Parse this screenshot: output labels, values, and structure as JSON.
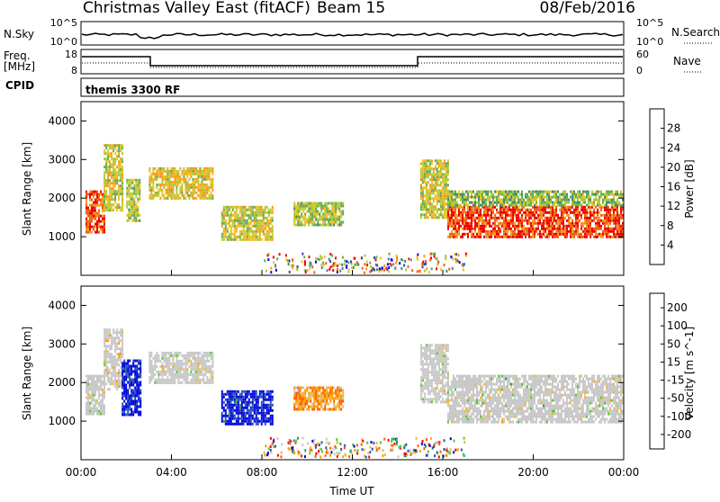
{
  "header": {
    "title": "Christmas Valley East (fitACF)",
    "beam": "Beam 15",
    "date": "08/Feb/2016"
  },
  "strips": {
    "nsky_label": "N.Sky",
    "nsearch_label": "N.Search",
    "nsky_yticks": [
      "10^5",
      "10^0"
    ],
    "nsearch_yticks": [
      "10^5",
      "10^0"
    ],
    "freq_label_1": "Freq.",
    "freq_label_2": "[MHz]",
    "freq_yticks": [
      "18",
      "8"
    ],
    "nave_label": "Nave",
    "nave_yticks": [
      "60",
      "0"
    ],
    "cpid_label": "CPID",
    "cpid_value": "themis 3300 RF"
  },
  "x_axis": {
    "label": "Time UT",
    "ticks": [
      "00:00",
      "04:00",
      "08:00",
      "12:00",
      "16:00",
      "20:00",
      "00:00"
    ]
  },
  "colors": {
    "power": [
      "#0000ee",
      "#2a4fa8",
      "#3f8a78",
      "#66aa55",
      "#aacc33",
      "#f0c020",
      "#f59a1e",
      "#f06018",
      "#ee0000"
    ],
    "velocity": [
      "#ff0000",
      "#ff5a00",
      "#ff9a00",
      "#f2b730",
      "#c8c8c8",
      "#55cc33",
      "#2f9a60",
      "#2855b8",
      "#0000dd"
    ]
  },
  "chart_data": [
    {
      "type": "heatmap",
      "panel": "power",
      "ylabel": "Slant Range [km]",
      "xlabel": "",
      "xlim": [
        0,
        24
      ],
      "ylim": [
        0,
        4500
      ],
      "yticks": [
        1000,
        2000,
        3000,
        4000
      ],
      "colorbar_label": "Power [dB]",
      "colorbar_ticks": [
        "4",
        "8",
        "12",
        "16",
        "20",
        "24",
        "28"
      ],
      "colorbar_range": [
        0,
        30
      ],
      "regions": [
        {
          "t0": 0.2,
          "t1": 1.0,
          "r0": 1100,
          "r1": 2200,
          "level": 0.85
        },
        {
          "t0": 1.0,
          "t1": 1.8,
          "r0": 1700,
          "r1": 3400,
          "level": 0.55
        },
        {
          "t0": 2.0,
          "t1": 2.6,
          "r0": 1400,
          "r1": 2500,
          "level": 0.5
        },
        {
          "t0": 3.0,
          "t1": 5.8,
          "r0": 2000,
          "r1": 2800,
          "level": 0.6
        },
        {
          "t0": 6.2,
          "t1": 8.5,
          "r0": 900,
          "r1": 1800,
          "level": 0.55
        },
        {
          "t0": 9.4,
          "t1": 11.6,
          "r0": 1300,
          "r1": 1900,
          "level": 0.5
        },
        {
          "t0": 15.0,
          "t1": 16.2,
          "r0": 1500,
          "r1": 3000,
          "level": 0.55
        },
        {
          "t0": 16.2,
          "t1": 24.0,
          "r0": 1000,
          "r1": 1800,
          "level": 0.88
        },
        {
          "t0": 16.2,
          "t1": 24.0,
          "r0": 1800,
          "r1": 2200,
          "level": 0.45
        }
      ]
    },
    {
      "type": "heatmap",
      "panel": "velocity",
      "ylabel": "Slant Range [km]",
      "xlabel": "Time UT",
      "xlim": [
        0,
        24
      ],
      "ylim": [
        0,
        4500
      ],
      "yticks": [
        1000,
        2000,
        3000,
        4000
      ],
      "colorbar_label": "Velocity [m s^-1]",
      "colorbar_ticks": [
        "200",
        "100",
        "50",
        "15",
        "-15",
        "-50",
        "-100",
        "-200"
      ],
      "colorbar_range": [
        -250,
        250
      ],
      "regions": [
        {
          "t0": 0.2,
          "t1": 1.0,
          "r0": 1200,
          "r1": 2200,
          "level": 0.5
        },
        {
          "t0": 1.0,
          "t1": 1.8,
          "r0": 1800,
          "r1": 3400,
          "level": 0.4
        },
        {
          "t0": 1.8,
          "t1": 2.6,
          "r0": 1200,
          "r1": 2600,
          "level": 0.95
        },
        {
          "t0": 3.0,
          "t1": 5.8,
          "r0": 2000,
          "r1": 2800,
          "level": 0.5
        },
        {
          "t0": 6.2,
          "t1": 8.5,
          "r0": 900,
          "r1": 1800,
          "level": 0.95
        },
        {
          "t0": 9.4,
          "t1": 11.6,
          "r0": 1300,
          "r1": 1900,
          "level": 0.3
        },
        {
          "t0": 15.0,
          "t1": 16.2,
          "r0": 1500,
          "r1": 3000,
          "level": 0.5
        },
        {
          "t0": 16.2,
          "t1": 24.0,
          "r0": 1000,
          "r1": 2200,
          "level": 0.5
        }
      ]
    }
  ]
}
